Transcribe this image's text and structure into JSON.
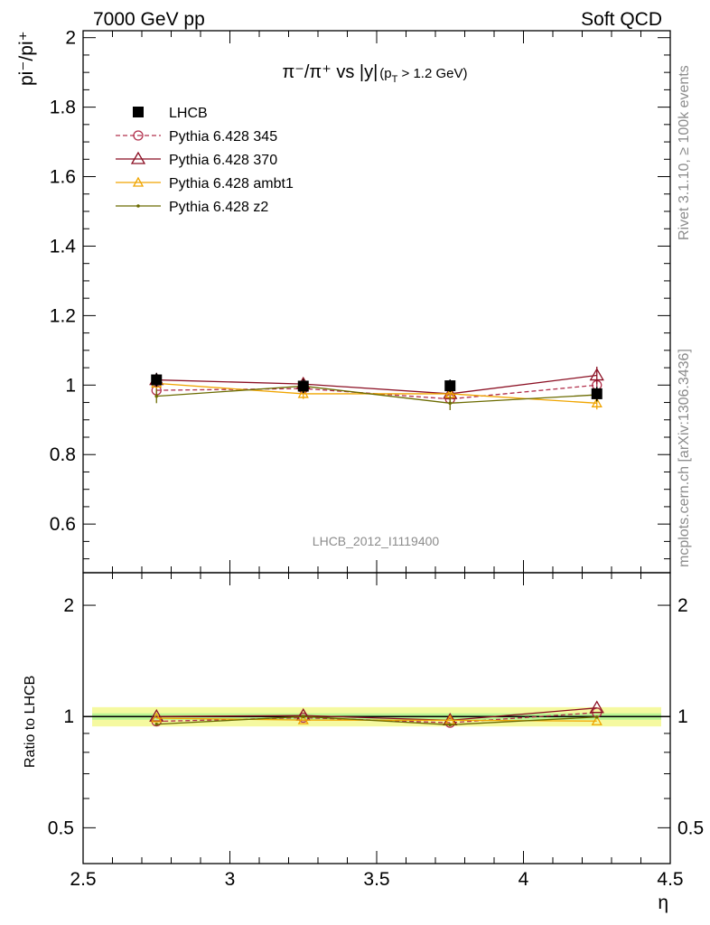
{
  "header": {
    "left": "7000 GeV pp",
    "right": "Soft QCD"
  },
  "side": {
    "rivet": "Rivet 3.1.10, ≥ 100k events",
    "mcplots": "mcplots.cern.ch [arXiv:1306.3436]"
  },
  "chart_data": [
    {
      "type": "line",
      "title_main": "π⁻/π⁺ vs |y|",
      "title_sub": "(p",
      "title_sub_index": "T",
      "title_sub_tail": " > 1.2 GeV)",
      "ylabel": "pi⁻/pi⁺",
      "watermark": "LHCB_2012_I1119400",
      "xlim": [
        2.5,
        4.5
      ],
      "ylim": [
        0.46,
        2.02
      ],
      "yticks": [
        "0.6",
        "0.8",
        "1",
        "1.2",
        "1.4",
        "1.6",
        "1.8",
        "2"
      ],
      "x": [
        2.75,
        3.25,
        3.75,
        4.25
      ],
      "legend_position": "top-left",
      "series": [
        {
          "name": "LHCB",
          "kind": "data",
          "color": "#000000",
          "values": [
            1.015,
            0.997,
            0.998,
            0.975
          ],
          "errors": [
            0.02,
            0.02,
            0.018,
            0.02
          ]
        },
        {
          "name": "Pythia 6.428 345",
          "kind": "mc",
          "color": "#b2304c",
          "dash": true,
          "marker": "circle",
          "values": [
            0.985,
            0.99,
            0.96,
            1.0
          ],
          "errors": [
            0.012,
            0.012,
            0.012,
            0.015
          ]
        },
        {
          "name": "Pythia 6.428 370",
          "kind": "mc",
          "color": "#8b0f23",
          "dash": false,
          "marker": "triangle",
          "values": [
            1.015,
            1.003,
            0.975,
            1.028
          ],
          "errors": [
            0.015,
            0.015,
            0.015,
            0.025
          ]
        },
        {
          "name": "Pythia 6.428 ambt1",
          "kind": "mc",
          "color": "#f0a500",
          "dash": false,
          "marker": "triangle-small",
          "values": [
            1.005,
            0.975,
            0.975,
            0.948
          ],
          "errors": [
            0.015,
            0.015,
            0.015,
            0.018
          ]
        },
        {
          "name": "Pythia 6.428 z2",
          "kind": "mc",
          "color": "#6b6b00",
          "dash": false,
          "marker": "dot",
          "values": [
            0.968,
            0.997,
            0.948,
            0.972
          ],
          "errors": [
            0.02,
            0.02,
            0.02,
            0.02
          ]
        }
      ]
    },
    {
      "type": "line",
      "ylabel": "Ratio to LHCB",
      "xlabel": "η",
      "xlim": [
        2.5,
        4.5
      ],
      "ylim": [
        0.4,
        2.45
      ],
      "xticks": [
        "2.5",
        "3",
        "3.5",
        "4",
        "4.5"
      ],
      "yticks": [
        "0.5",
        "1",
        "2"
      ],
      "log_scale_y": true,
      "x": [
        2.75,
        3.25,
        3.75,
        4.25
      ],
      "band": {
        "outer": 0.06,
        "inner": 0.02,
        "outer_color": "#f5f9a0",
        "inner_color": "#b9f593"
      },
      "series": [
        {
          "name": "Pythia 6.428 345",
          "color": "#b2304c",
          "dash": true,
          "marker": "circle",
          "values": [
            0.97,
            0.993,
            0.962,
            1.025
          ]
        },
        {
          "name": "Pythia 6.428 370",
          "color": "#8b0f23",
          "dash": false,
          "marker": "triangle",
          "values": [
            1.0,
            1.006,
            0.977,
            1.055
          ]
        },
        {
          "name": "Pythia 6.428 ambt1",
          "color": "#f0a500",
          "dash": false,
          "marker": "triangle-small",
          "values": [
            0.99,
            0.978,
            0.977,
            0.972
          ]
        },
        {
          "name": "Pythia 6.428 z2",
          "color": "#6b6b00",
          "dash": false,
          "marker": "dot",
          "values": [
            0.953,
            1.0,
            0.95,
            0.997
          ]
        }
      ]
    }
  ]
}
